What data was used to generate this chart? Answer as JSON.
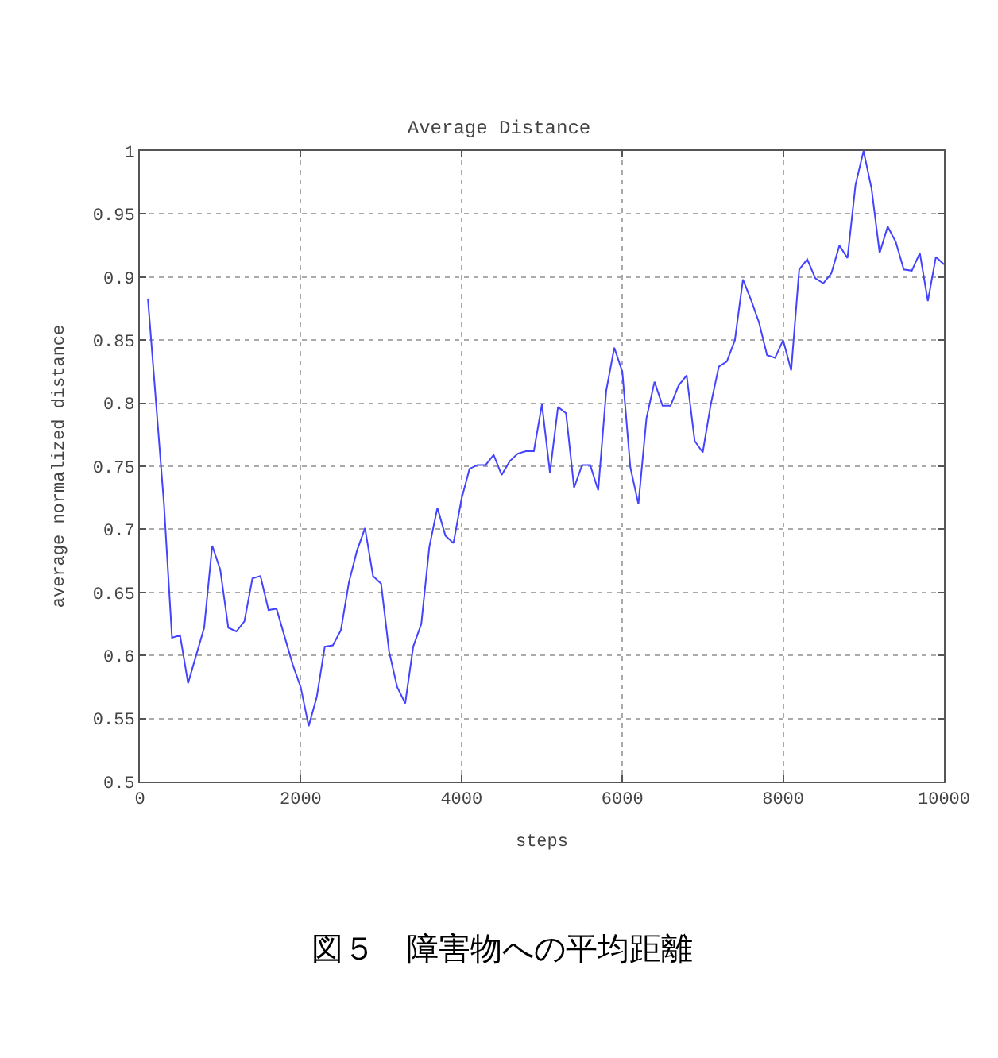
{
  "chart_data": {
    "type": "line",
    "title": "Average Distance",
    "xlabel": "steps",
    "ylabel": "average normalized distance",
    "annotations": [
      "図５　障害物への平均距離"
    ],
    "x": [
      100,
      300,
      400,
      500,
      600,
      800,
      900,
      1000,
      1100,
      1200,
      1300,
      1400,
      1500,
      1600,
      1700,
      1900,
      2000,
      2100,
      2200,
      2300,
      2400,
      2500,
      2600,
      2700,
      2800,
      2900,
      3000,
      3100,
      3200,
      3300,
      3400,
      3500,
      3600,
      3700,
      3800,
      3900,
      4000,
      4100,
      4200,
      4300,
      4400,
      4500,
      4600,
      4700,
      4800,
      4900,
      5000,
      5100,
      5200,
      5300,
      5400,
      5500,
      5600,
      5700,
      5800,
      5900,
      6000,
      6100,
      6200,
      6300,
      6400,
      6500,
      6600,
      6700,
      6800,
      6900,
      7000,
      7100,
      7200,
      7300,
      7400,
      7500,
      7600,
      7700,
      7800,
      7900,
      8000,
      8100,
      8200,
      8300,
      8400,
      8500,
      8600,
      8700,
      8800,
      8900,
      9000,
      9100,
      9200,
      9300,
      9400,
      9500,
      9600,
      9700,
      9800,
      9900,
      10000
    ],
    "series": [
      {
        "color": "#4444ff",
        "values": [
          0.883,
          0.72,
          0.614,
          0.616,
          0.578,
          0.622,
          0.687,
          0.668,
          0.622,
          0.619,
          0.627,
          0.661,
          0.663,
          0.636,
          0.637,
          0.593,
          0.575,
          0.544,
          0.567,
          0.607,
          0.608,
          0.62,
          0.658,
          0.683,
          0.701,
          0.663,
          0.657,
          0.603,
          0.575,
          0.562,
          0.607,
          0.625,
          0.686,
          0.717,
          0.695,
          0.689,
          0.724,
          0.748,
          0.751,
          0.751,
          0.759,
          0.743,
          0.754,
          0.76,
          0.762,
          0.762,
          0.799,
          0.745,
          0.797,
          0.792,
          0.733,
          0.751,
          0.751,
          0.731,
          0.81,
          0.844,
          0.825,
          0.749,
          0.72,
          0.788,
          0.817,
          0.798,
          0.798,
          0.814,
          0.822,
          0.77,
          0.761,
          0.799,
          0.829,
          0.833,
          0.85,
          0.898,
          0.882,
          0.864,
          0.838,
          0.836,
          0.85,
          0.826,
          0.906,
          0.914,
          0.899,
          0.895,
          0.903,
          0.925,
          0.915,
          0.973,
          1.0,
          0.97,
          0.919,
          0.94,
          0.928,
          0.906,
          0.905,
          0.919,
          0.881,
          0.916,
          0.91
        ]
      }
    ],
    "xlim": [
      0,
      10000
    ],
    "xticks": [
      0,
      2000,
      4000,
      6000,
      8000,
      10000
    ],
    "ylim": [
      0.5,
      1
    ],
    "yticks": [
      0.5,
      0.55,
      0.6,
      0.65,
      0.7,
      0.75,
      0.8,
      0.85,
      0.9,
      0.95,
      1
    ],
    "grid": true,
    "marker": "none",
    "line_style": "solid"
  }
}
